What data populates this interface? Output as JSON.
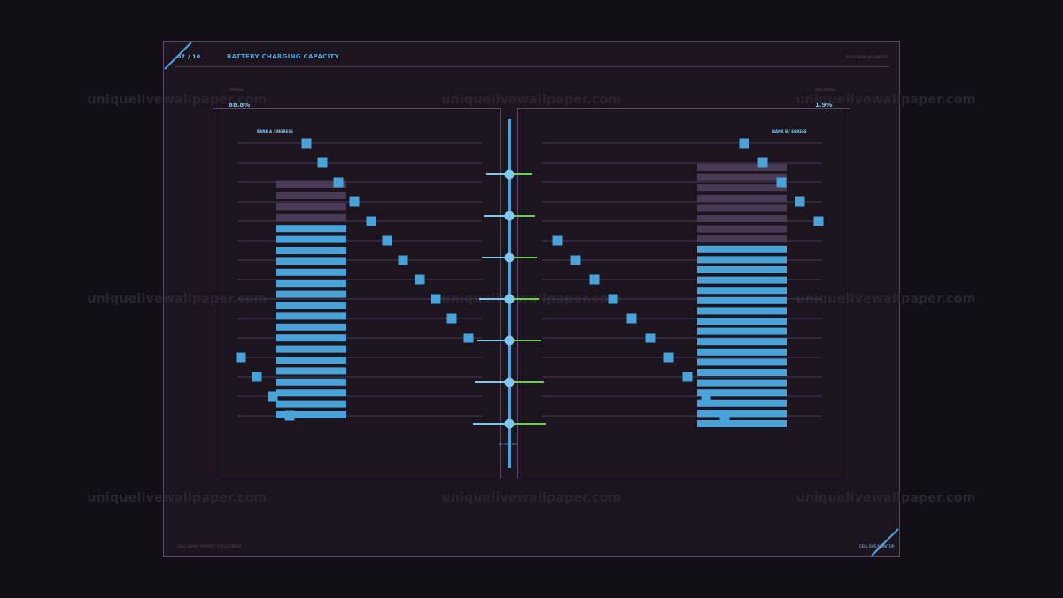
{
  "header": {
    "page_indicator": "07 / 10",
    "title": "BATTERY CHARGING CAPACITY",
    "subtitle_right": "DUAL BANK BALANCER"
  },
  "left_metric": {
    "label": "CHARGE",
    "value": "88.8%"
  },
  "right_metric": {
    "label": "DISCHARGE",
    "value": "1.9%"
  },
  "bank_a": {
    "label": "BANK A / INGRESS",
    "charged_cells": 18,
    "empty_cells": 4,
    "markers": [
      12,
      11,
      10,
      9,
      8,
      7,
      6,
      5,
      4,
      3,
      2,
      1,
      0,
      0,
      0,
      0
    ]
  },
  "bank_b": {
    "label": "BANK B / EGRESS",
    "charged_cells": 18,
    "empty_cells": 8
  },
  "center": {
    "label": "BALANCE BUS",
    "node_count": 7
  },
  "footer": {
    "left": "CELL LOAD  /  OUTPUT  /  CYCLE DRIVE",
    "right": "CELL BUS MONITOR"
  },
  "watermark": "uniquelivewallpaper.com",
  "colors": {
    "accent": "#4aa3d8",
    "accent_light": "#7fc8ec",
    "empty_cell": "#4a3a56",
    "green": "#6bd146",
    "frame": "#5a4468",
    "background": "#1c1520"
  }
}
